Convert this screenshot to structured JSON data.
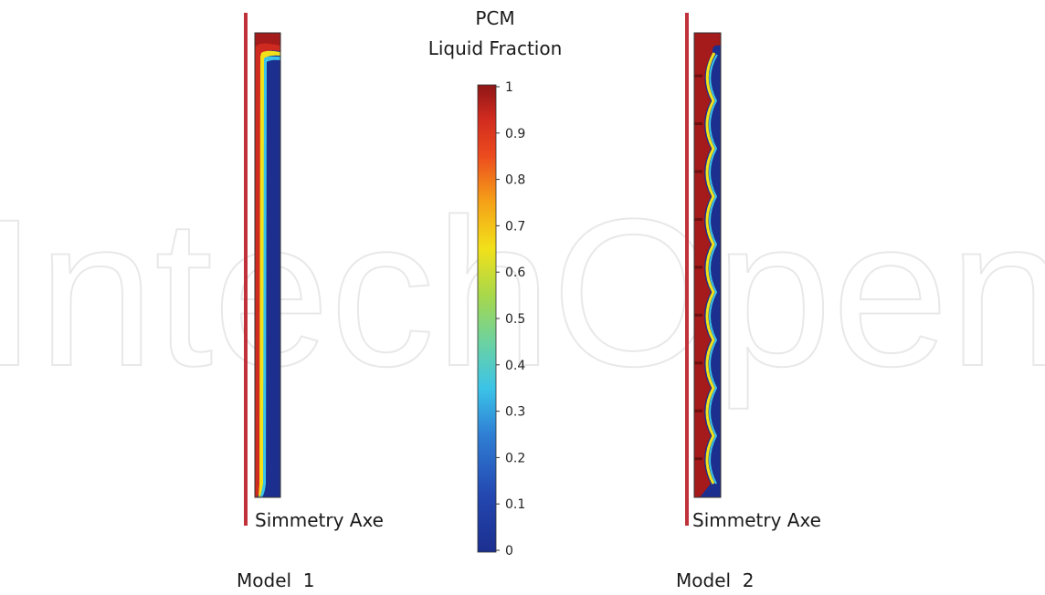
{
  "watermark": "IntechOpen",
  "colorbar": {
    "title_line1": "PCM",
    "title_line2": "Liquid Fraction",
    "ticks": [
      "1",
      "0.9",
      "0.8",
      "0.7",
      "0.6",
      "0.5",
      "0.4",
      "0.3",
      "0.2",
      "0.1",
      "0"
    ],
    "range": [
      0,
      1
    ]
  },
  "models": [
    {
      "label": "Model  1",
      "axis_label": "Simmetry Axe",
      "fins": 0
    },
    {
      "label": "Model  2",
      "axis_label": "Simmetry Axe",
      "fins": 9
    }
  ],
  "colors": {
    "axis_line": "#c0323a",
    "solid": "#1c2f8f",
    "liquid": "#a51a1a"
  }
}
